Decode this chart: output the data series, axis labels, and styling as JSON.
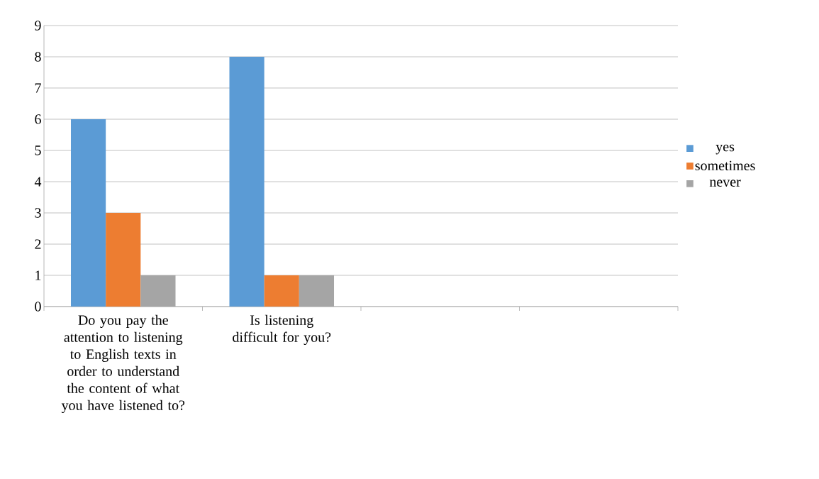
{
  "chart_data": {
    "type": "bar",
    "categories": [
      "Do you pay the attention to listening to English texts in order to understand the content of what you have listened to?",
      "Is listening difficult for you?",
      null,
      null
    ],
    "series": [
      {
        "name": "yes",
        "color": "#5b9bd5",
        "values": [
          6,
          8,
          null,
          null
        ]
      },
      {
        "name": "sometimes",
        "color": "#ed7d31",
        "values": [
          3,
          1,
          null,
          null
        ]
      },
      {
        "name": "never",
        "color": "#a5a5a5",
        "values": [
          1,
          1,
          null,
          null
        ]
      }
    ],
    "ylim": [
      0,
      9
    ],
    "yticks": [
      0,
      1,
      2,
      3,
      4,
      5,
      6,
      7,
      8,
      9
    ],
    "grid": "y",
    "legend": "right"
  }
}
